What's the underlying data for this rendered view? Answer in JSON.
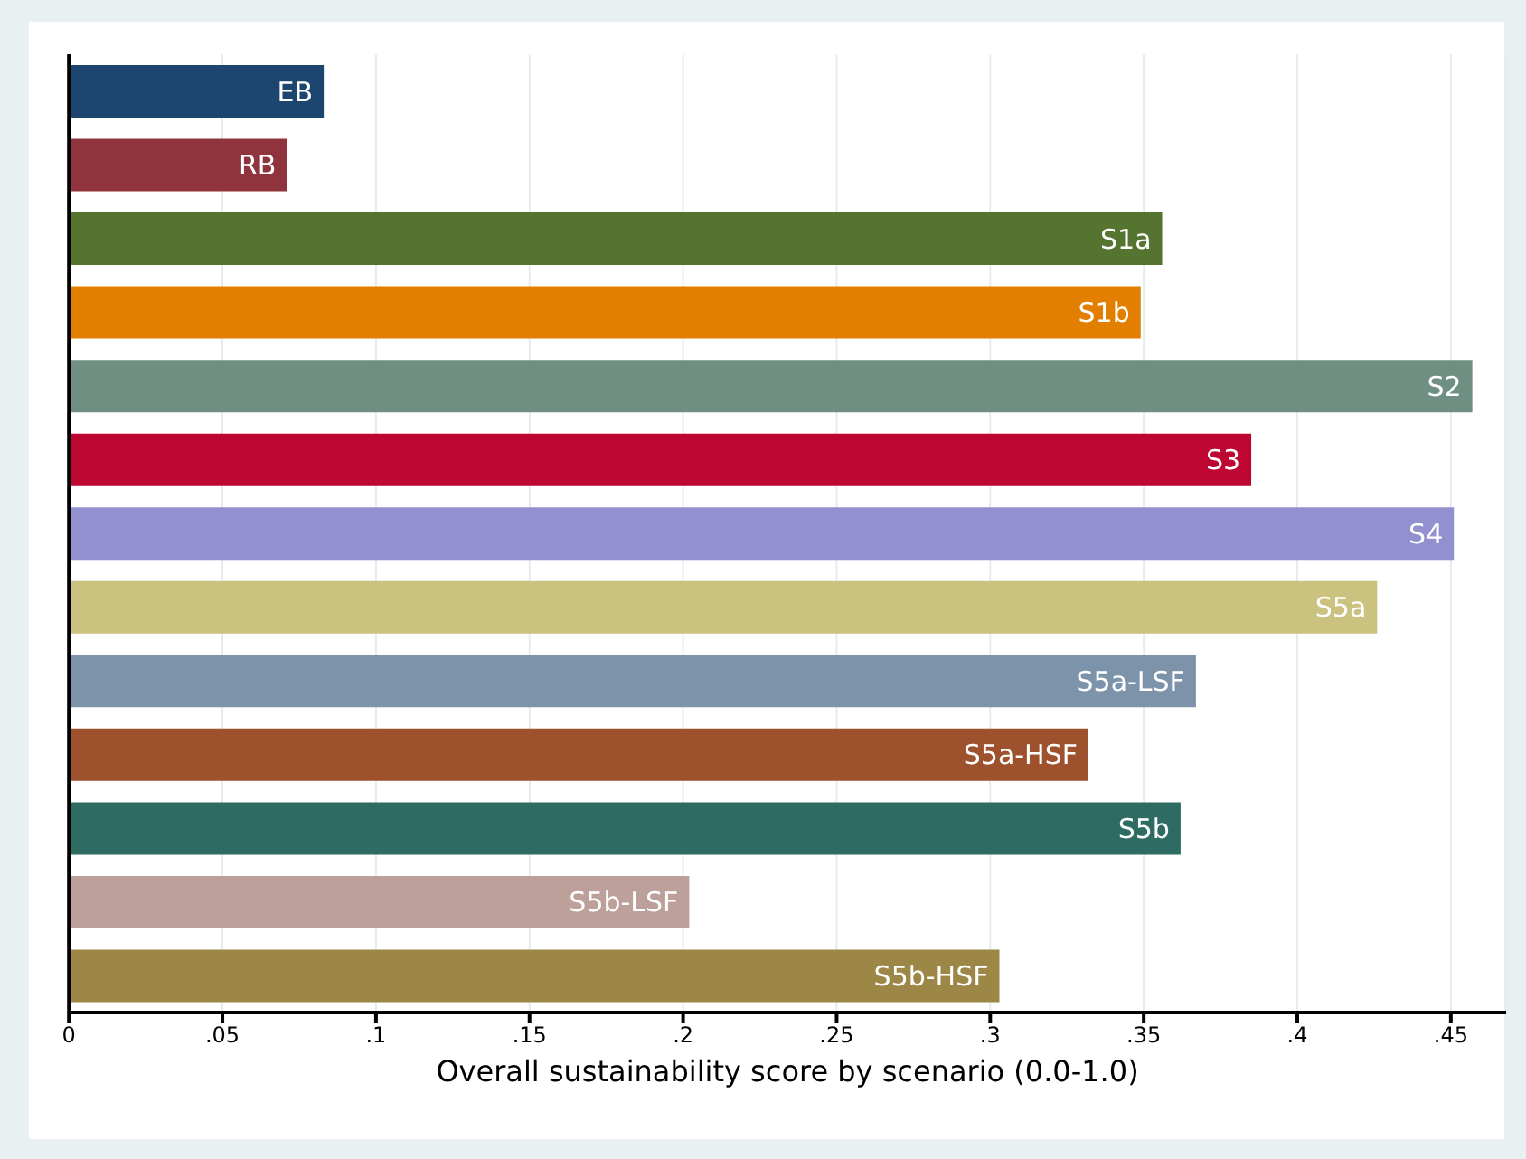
{
  "chart_data": {
    "type": "bar",
    "orientation": "horizontal",
    "xlabel": "Overall sustainability score by scenario (0.0-1.0)",
    "categories": [
      "EB",
      "RB",
      "S1a",
      "S1b",
      "S2",
      "S3",
      "S4",
      "S5a",
      "S5a-LSF",
      "S5a-HSF",
      "S5b",
      "S5b-LSF",
      "S5b-HSF"
    ],
    "values": [
      0.083,
      0.071,
      0.356,
      0.349,
      0.457,
      0.385,
      0.451,
      0.426,
      0.367,
      0.332,
      0.362,
      0.202,
      0.303
    ],
    "colors": [
      "#1c4670",
      "#8f343c",
      "#55742f",
      "#e27f00",
      "#6f8f82",
      "#be0632",
      "#9390d0",
      "#cbc27f",
      "#7d93aa",
      "#9e512d",
      "#2e6c63",
      "#bea09a",
      "#9c8746"
    ],
    "xlim": [
      0,
      0.468
    ],
    "xticks": [
      {
        "value": 0,
        "label": "0"
      },
      {
        "value": 0.05,
        "label": ".05"
      },
      {
        "value": 0.1,
        "label": ".1"
      },
      {
        "value": 0.15,
        "label": ".15"
      },
      {
        "value": 0.2,
        "label": ".2"
      },
      {
        "value": 0.25,
        "label": ".25"
      },
      {
        "value": 0.3,
        "label": ".3"
      },
      {
        "value": 0.35,
        "label": ".35"
      },
      {
        "value": 0.4,
        "label": ".4"
      },
      {
        "value": 0.45,
        "label": ".45"
      }
    ],
    "grid": "x",
    "tick_labels": "x",
    "legend": false
  }
}
